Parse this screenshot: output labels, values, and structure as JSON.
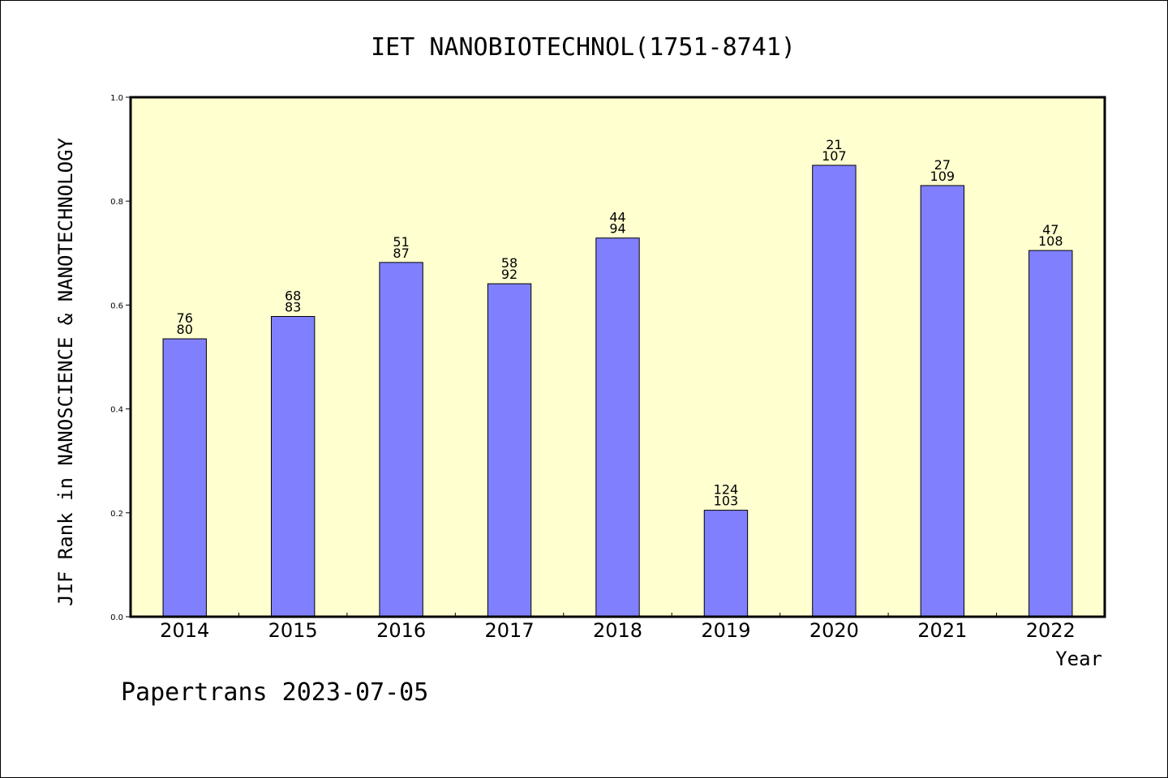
{
  "chart_data": {
    "type": "bar",
    "title": "IET NANOBIOTECHNOL(1751-8741)",
    "xlabel": "Year",
    "ylabel": "JIF Rank in NANOSCIENCE & NANOTECHNOLOGY",
    "ylim": [
      0,
      1.0
    ],
    "yticks": [
      "0.0",
      "0.2",
      "0.4",
      "0.6",
      "0.8",
      "1.0"
    ],
    "categories": [
      "2014",
      "2015",
      "2016",
      "2017",
      "2018",
      "2019",
      "2020",
      "2021",
      "2022"
    ],
    "values": [
      0.535,
      0.578,
      0.682,
      0.641,
      0.729,
      0.205,
      0.869,
      0.83,
      0.705
    ],
    "bar_labels_top": [
      "76",
      "68",
      "51",
      "58",
      "44",
      "124",
      "21",
      "27",
      "47"
    ],
    "bar_labels_bottom": [
      "80",
      "83",
      "87",
      "92",
      "94",
      "103",
      "107",
      "109",
      "108"
    ],
    "grid": false,
    "colors": {
      "bar": "#8080ff",
      "plot_background": "#ffffd0",
      "axis": "#000000"
    }
  },
  "footer": {
    "text": "Papertrans 2023-07-05"
  }
}
